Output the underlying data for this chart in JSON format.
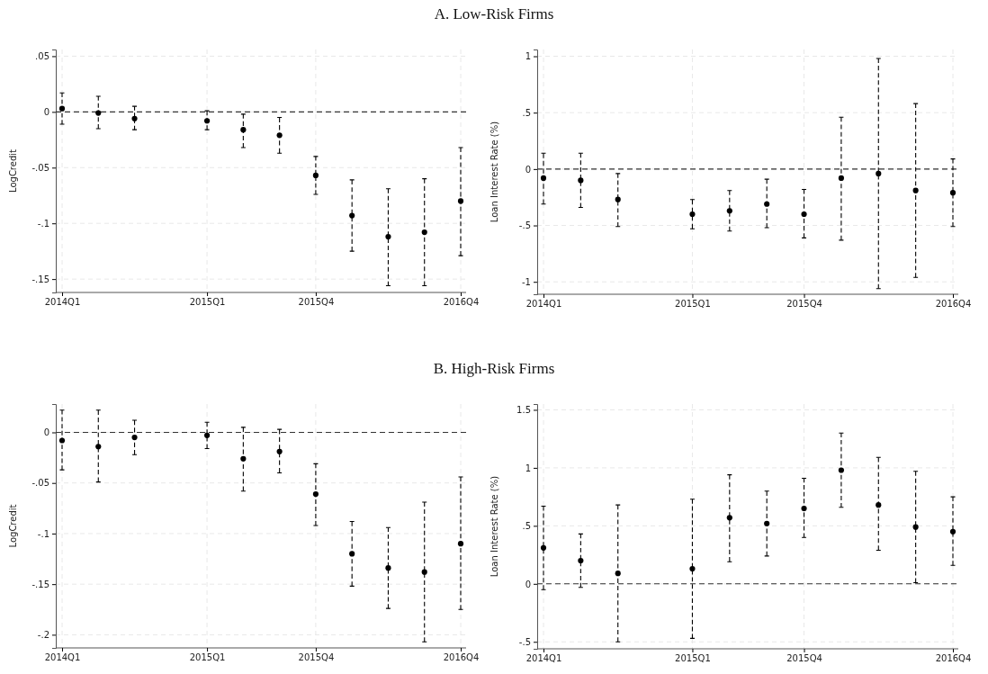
{
  "chart_data": [
    {
      "type": "scatter",
      "title": "A. Low-Risk Firms",
      "ylabel": "LogCredit",
      "categories": [
        "2014Q1",
        null,
        null,
        null,
        "2015Q1",
        null,
        null,
        "2015Q4",
        null,
        null,
        null,
        "2016Q4"
      ],
      "ylim": [
        -0.162,
        0.056
      ],
      "yticks": [
        {
          "value": -0.15,
          "label": "-.15"
        },
        {
          "value": -0.1,
          "label": "-.1"
        },
        {
          "value": -0.05,
          "label": "-.05"
        },
        0,
        {
          "value": 0.05,
          "label": ".05"
        }
      ],
      "grid": true,
      "marker": "circle",
      "ref_lines": [
        {
          "axis": "y",
          "value": 0,
          "line_style": "dashed",
          "color": "#333333"
        }
      ],
      "series": [
        {
          "color": "#000000",
          "values": [
            0.003,
            -0.001,
            -0.006,
            null,
            -0.008,
            -0.016,
            -0.021,
            -0.057,
            -0.093,
            -0.112,
            -0.108,
            -0.08
          ],
          "errors": [
            [
              -0.011,
              0.017
            ],
            [
              -0.015,
              0.014
            ],
            [
              -0.016,
              0.005
            ],
            null,
            [
              -0.016,
              0.001
            ],
            [
              -0.032,
              -0.002
            ],
            [
              -0.037,
              -0.005
            ],
            [
              -0.074,
              -0.04
            ],
            [
              -0.125,
              -0.061
            ],
            [
              -0.156,
              -0.069
            ],
            [
              -0.156,
              -0.06
            ],
            [
              -0.129,
              -0.032
            ]
          ]
        }
      ]
    },
    {
      "type": "scatter",
      "ylabel": "Loan Interest Rate (%)",
      "categories": [
        "2014Q1",
        null,
        null,
        null,
        "2015Q1",
        null,
        null,
        "2015Q4",
        null,
        null,
        null,
        "2016Q4"
      ],
      "ylim": [
        -1.11,
        1.06
      ],
      "yticks": [
        -1,
        {
          "value": -0.5,
          "label": "-.5"
        },
        0,
        {
          "value": 0.5,
          "label": ".5"
        },
        1
      ],
      "grid": true,
      "marker": "circle",
      "ref_lines": [
        {
          "axis": "y",
          "value": 0,
          "line_style": "dashed",
          "color": "#333333"
        }
      ],
      "series": [
        {
          "color": "#000000",
          "values": [
            -0.08,
            -0.1,
            -0.27,
            null,
            -0.4,
            -0.37,
            -0.31,
            -0.4,
            -0.08,
            -0.04,
            -0.19,
            -0.21
          ],
          "errors": [
            [
              -0.31,
              0.14
            ],
            [
              -0.34,
              0.14
            ],
            [
              -0.51,
              -0.04
            ],
            null,
            [
              -0.53,
              -0.27
            ],
            [
              -0.55,
              -0.19
            ],
            [
              -0.52,
              -0.09
            ],
            [
              -0.61,
              -0.18
            ],
            [
              -0.63,
              0.46
            ],
            [
              -1.06,
              0.98
            ],
            [
              -0.96,
              0.58
            ],
            [
              -0.51,
              0.09
            ]
          ]
        }
      ]
    },
    {
      "type": "scatter",
      "title": "B. High-Risk Firms",
      "ylabel": "LogCredit",
      "categories": [
        "2014Q1",
        null,
        null,
        null,
        "2015Q1",
        null,
        null,
        "2015Q4",
        null,
        null,
        null,
        "2016Q4"
      ],
      "ylim": [
        -0.213,
        0.028
      ],
      "yticks": [
        {
          "value": -0.2,
          "label": "-.2"
        },
        {
          "value": -0.15,
          "label": "-.15"
        },
        {
          "value": -0.1,
          "label": "-.1"
        },
        {
          "value": -0.05,
          "label": "-.05"
        },
        0
      ],
      "grid": true,
      "marker": "circle",
      "ref_lines": [
        {
          "axis": "y",
          "value": 0,
          "line_style": "dashed",
          "color": "#333333"
        }
      ],
      "series": [
        {
          "color": "#000000",
          "values": [
            -0.008,
            -0.014,
            -0.005,
            null,
            -0.003,
            -0.026,
            -0.019,
            -0.061,
            -0.12,
            -0.134,
            -0.138,
            -0.11
          ],
          "errors": [
            [
              -0.037,
              0.022
            ],
            [
              -0.049,
              0.022
            ],
            [
              -0.022,
              0.012
            ],
            null,
            [
              -0.016,
              0.01
            ],
            [
              -0.058,
              0.005
            ],
            [
              -0.04,
              0.003
            ],
            [
              -0.092,
              -0.031
            ],
            [
              -0.152,
              -0.088
            ],
            [
              -0.174,
              -0.094
            ],
            [
              -0.207,
              -0.069
            ],
            [
              -0.175,
              -0.044
            ]
          ]
        }
      ]
    },
    {
      "type": "scatter",
      "ylabel": "Loan Interest Rate (%)",
      "categories": [
        "2014Q1",
        null,
        null,
        null,
        "2015Q1",
        null,
        null,
        "2015Q4",
        null,
        null,
        null,
        "2016Q4"
      ],
      "ylim": [
        -0.56,
        1.55
      ],
      "yticks": [
        {
          "value": -0.5,
          "label": "-.5"
        },
        0,
        {
          "value": 0.5,
          "label": ".5"
        },
        1,
        1.5
      ],
      "grid": true,
      "marker": "circle",
      "ref_lines": [
        {
          "axis": "y",
          "value": 0,
          "line_style": "dashed",
          "color": "#333333"
        }
      ],
      "series": [
        {
          "color": "#000000",
          "values": [
            0.31,
            0.2,
            0.09,
            null,
            0.13,
            0.57,
            0.52,
            0.65,
            0.98,
            0.68,
            0.49,
            0.45
          ],
          "errors": [
            [
              -0.05,
              0.67
            ],
            [
              -0.03,
              0.43
            ],
            [
              -0.5,
              0.68
            ],
            null,
            [
              -0.47,
              0.73
            ],
            [
              0.19,
              0.94
            ],
            [
              0.24,
              0.8
            ],
            [
              0.4,
              0.91
            ],
            [
              0.66,
              1.3
            ],
            [
              0.29,
              1.09
            ],
            [
              0.01,
              0.97
            ],
            [
              0.16,
              0.75
            ]
          ]
        }
      ]
    }
  ]
}
